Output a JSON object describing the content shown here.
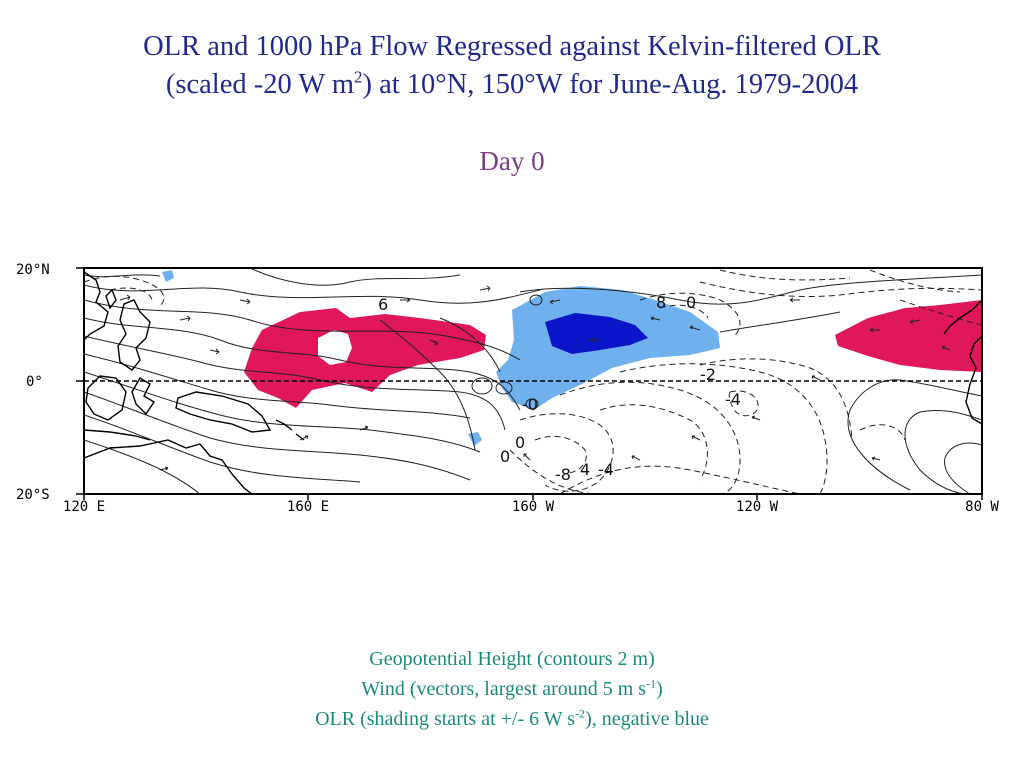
{
  "title": {
    "line1": "OLR and 1000 hPa Flow Regressed against Kelvin-filtered OLR",
    "line2_prefix": "(scaled -20 W m",
    "line2_sup": "2",
    "line2_suffix": ") at 10°N, 150°W for June-Aug. 1979-2004"
  },
  "subtitle": "Day 0",
  "map": {
    "lat_labels": [
      "20°N",
      "0°",
      "20°S"
    ],
    "lon_labels": [
      "120 E",
      "160 E",
      "160 W",
      "120 W",
      "80 W"
    ],
    "contour_labels": [
      "6",
      "8",
      "0",
      "-2",
      "-4",
      "-0",
      "0",
      "0",
      "-8",
      "4",
      "-4"
    ],
    "colors": {
      "positive_olr": "#e0175a",
      "negative_olr_light": "#6fb0ee",
      "negative_olr_dark": "#0a14c8",
      "contours": "#222222",
      "coast": "#000000"
    }
  },
  "caption": {
    "line1": "Geopotential Height (contours 2 m)",
    "line2_prefix": "Wind (vectors, largest around 5 m s",
    "line2_sup": "-1",
    "line2_suffix": ")",
    "line3_prefix": "OLR (shading starts at +/- 6 W s",
    "line3_sup": "-2",
    "line3_suffix": "), negative blue"
  }
}
